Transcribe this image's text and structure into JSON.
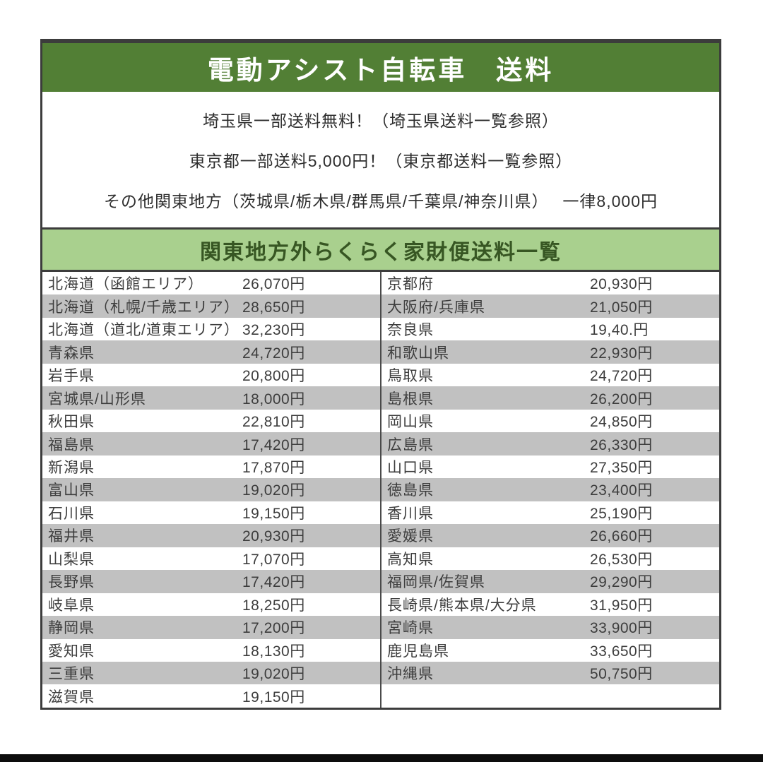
{
  "header": {
    "title": "電動アシスト自転車　送料"
  },
  "notices": {
    "line1": "埼玉県一部送料無料！（埼玉県送料一覧参照）",
    "line2": "東京都一部送料5,000円！（東京都送料一覧参照）",
    "line3": "その他関東地方（茨城県/栃木県/群馬県/千葉県/神奈川県）　 一律8,000円"
  },
  "table": {
    "title": "関東地方外らくらく家財便送料一覧",
    "left_rows": [
      {
        "name": "北海道（函館エリア）",
        "price": "26,070円"
      },
      {
        "name": "北海道（札幌/千歳エリア）",
        "price": "28,650円"
      },
      {
        "name": "北海道（道北/道東エリア）",
        "price": "32,230円"
      },
      {
        "name": "青森県",
        "price": "24,720円"
      },
      {
        "name": "岩手県",
        "price": "20,800円"
      },
      {
        "name": "宮城県/山形県",
        "price": "18,000円"
      },
      {
        "name": "秋田県",
        "price": "22,810円"
      },
      {
        "name": "福島県",
        "price": "17,420円"
      },
      {
        "name": "新潟県",
        "price": "17,870円"
      },
      {
        "name": "富山県",
        "price": "19,020円"
      },
      {
        "name": "石川県",
        "price": "19,150円"
      },
      {
        "name": "福井県",
        "price": "20,930円"
      },
      {
        "name": "山梨県",
        "price": "17,070円"
      },
      {
        "name": "長野県",
        "price": "17,420円"
      },
      {
        "name": "岐阜県",
        "price": "18,250円"
      },
      {
        "name": "静岡県",
        "price": "17,200円"
      },
      {
        "name": "愛知県",
        "price": "18,130円"
      },
      {
        "name": "三重県",
        "price": "19,020円"
      },
      {
        "name": "滋賀県",
        "price": "19,150円"
      }
    ],
    "right_rows": [
      {
        "name": "京都府",
        "price": "20,930円"
      },
      {
        "name": "大阪府/兵庫県",
        "price": "21,050円"
      },
      {
        "name": "奈良県",
        "price": "19,40.円"
      },
      {
        "name": "和歌山県",
        "price": "22,930円"
      },
      {
        "name": "鳥取県",
        "price": "24,720円"
      },
      {
        "name": "島根県",
        "price": "26,200円"
      },
      {
        "name": "岡山県",
        "price": "24,850円"
      },
      {
        "name": "広島県",
        "price": "26,330円"
      },
      {
        "name": "山口県",
        "price": "27,350円"
      },
      {
        "name": "徳島県",
        "price": "23,400円"
      },
      {
        "name": "香川県",
        "price": "25,190円"
      },
      {
        "name": "愛媛県",
        "price": "26,660円"
      },
      {
        "name": "高知県",
        "price": "26,530円"
      },
      {
        "name": "福岡県/佐賀県",
        "price": "29,290円"
      },
      {
        "name": "長崎県/熊本県/大分県",
        "price": "31,950円"
      },
      {
        "name": "宮崎県",
        "price": "33,900円"
      },
      {
        "name": "鹿児島県",
        "price": "33,650円"
      },
      {
        "name": "沖縄県",
        "price": "50,750円"
      },
      {
        "name": "",
        "price": ""
      }
    ]
  },
  "colors": {
    "header_green": "#527f35",
    "subheader_green": "#a9d08e",
    "subheader_text": "#375623",
    "stripe_gray": "#c1c1c1",
    "border_dark": "#3c3c3c",
    "bottom_bar_black": "#0d0d0d"
  }
}
